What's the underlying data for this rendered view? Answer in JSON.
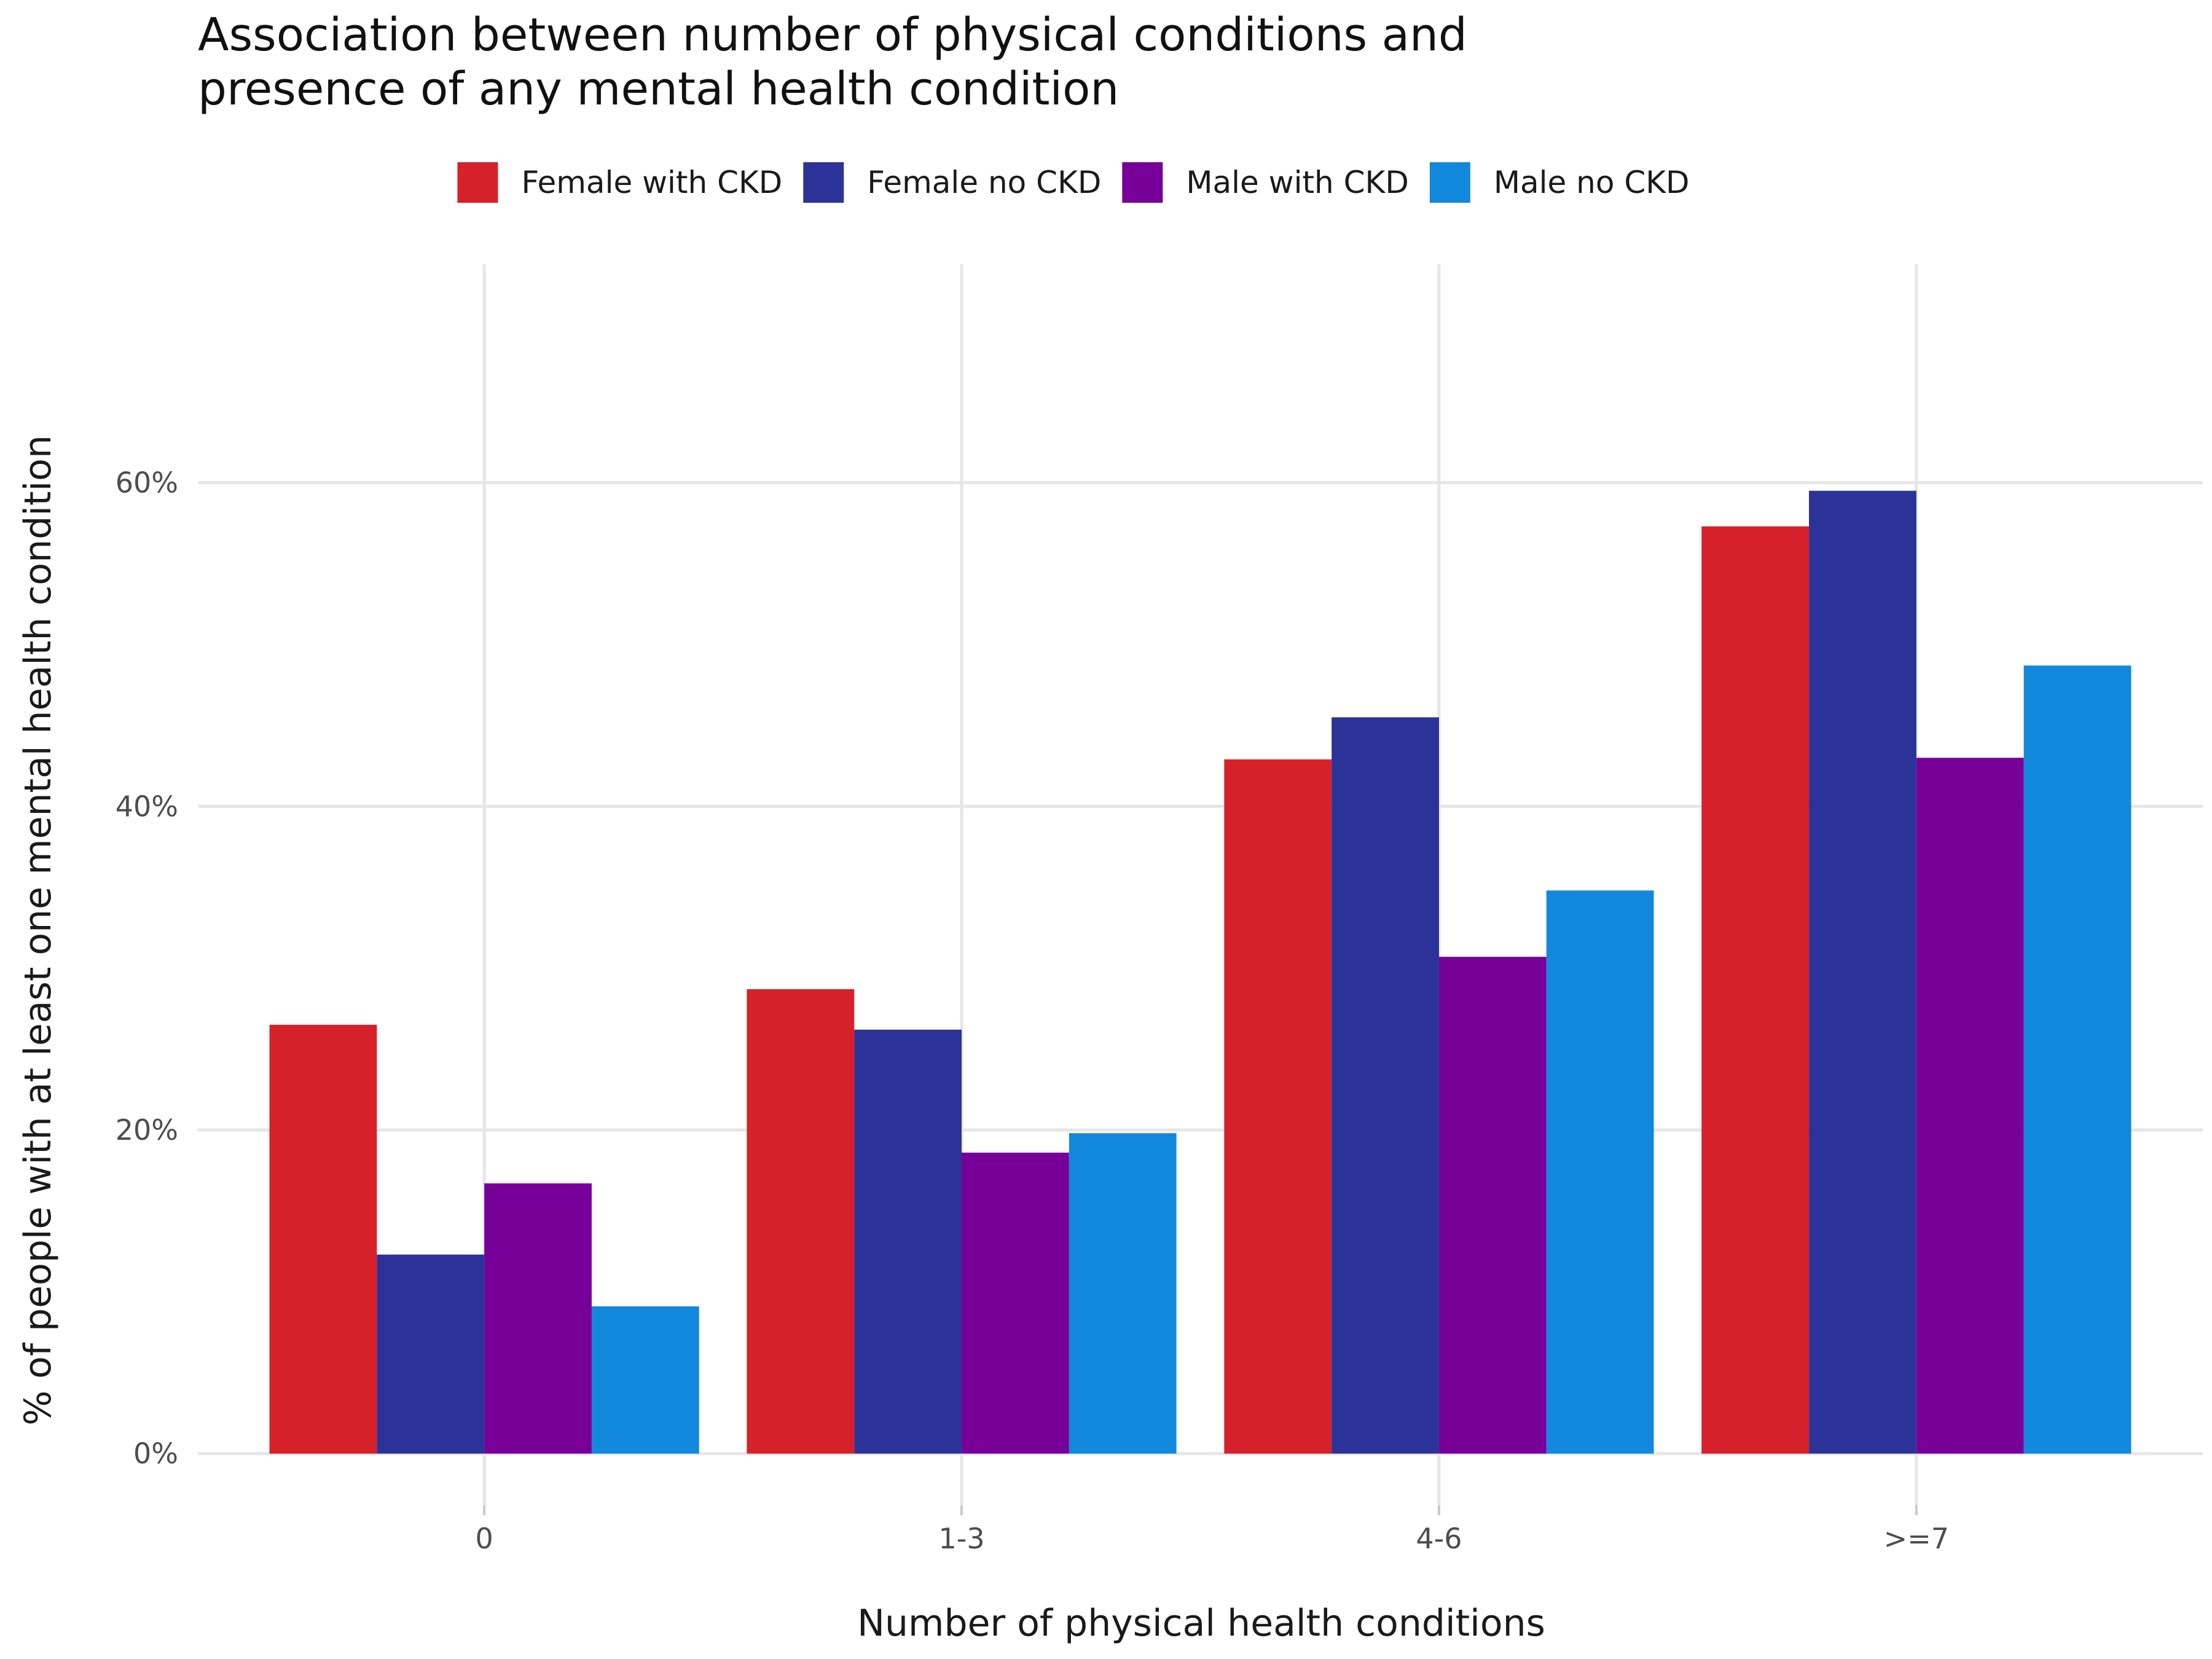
{
  "chart_data": {
    "type": "bar",
    "title_lines": [
      "Association between number of physical conditions and",
      "presence of any mental health condition"
    ],
    "xlabel": "Number of physical health conditions",
    "ylabel": "% of people with at least one mental health condition",
    "categories": [
      "0",
      "1-3",
      "4-6",
      ">=7"
    ],
    "series": [
      {
        "name": "Female with CKD",
        "color": "#d7212a",
        "values": [
          26.5,
          28.7,
          42.9,
          57.3
        ]
      },
      {
        "name": "Female no CKD",
        "color": "#2b3398",
        "values": [
          12.3,
          26.2,
          45.5,
          59.5
        ]
      },
      {
        "name": "Male with CKD",
        "color": "#760098",
        "values": [
          16.7,
          18.6,
          30.7,
          43.0
        ]
      },
      {
        "name": "Male no CKD",
        "color": "#1288dd",
        "values": [
          9.1,
          19.8,
          34.8,
          48.7
        ]
      }
    ],
    "y_ticks": [
      0,
      20,
      40,
      60
    ],
    "y_tick_labels": [
      "0%",
      "20%",
      "40%",
      "60%"
    ],
    "ylim": [
      -3.2,
      73.5
    ],
    "grid": true,
    "legend_position": "top"
  }
}
